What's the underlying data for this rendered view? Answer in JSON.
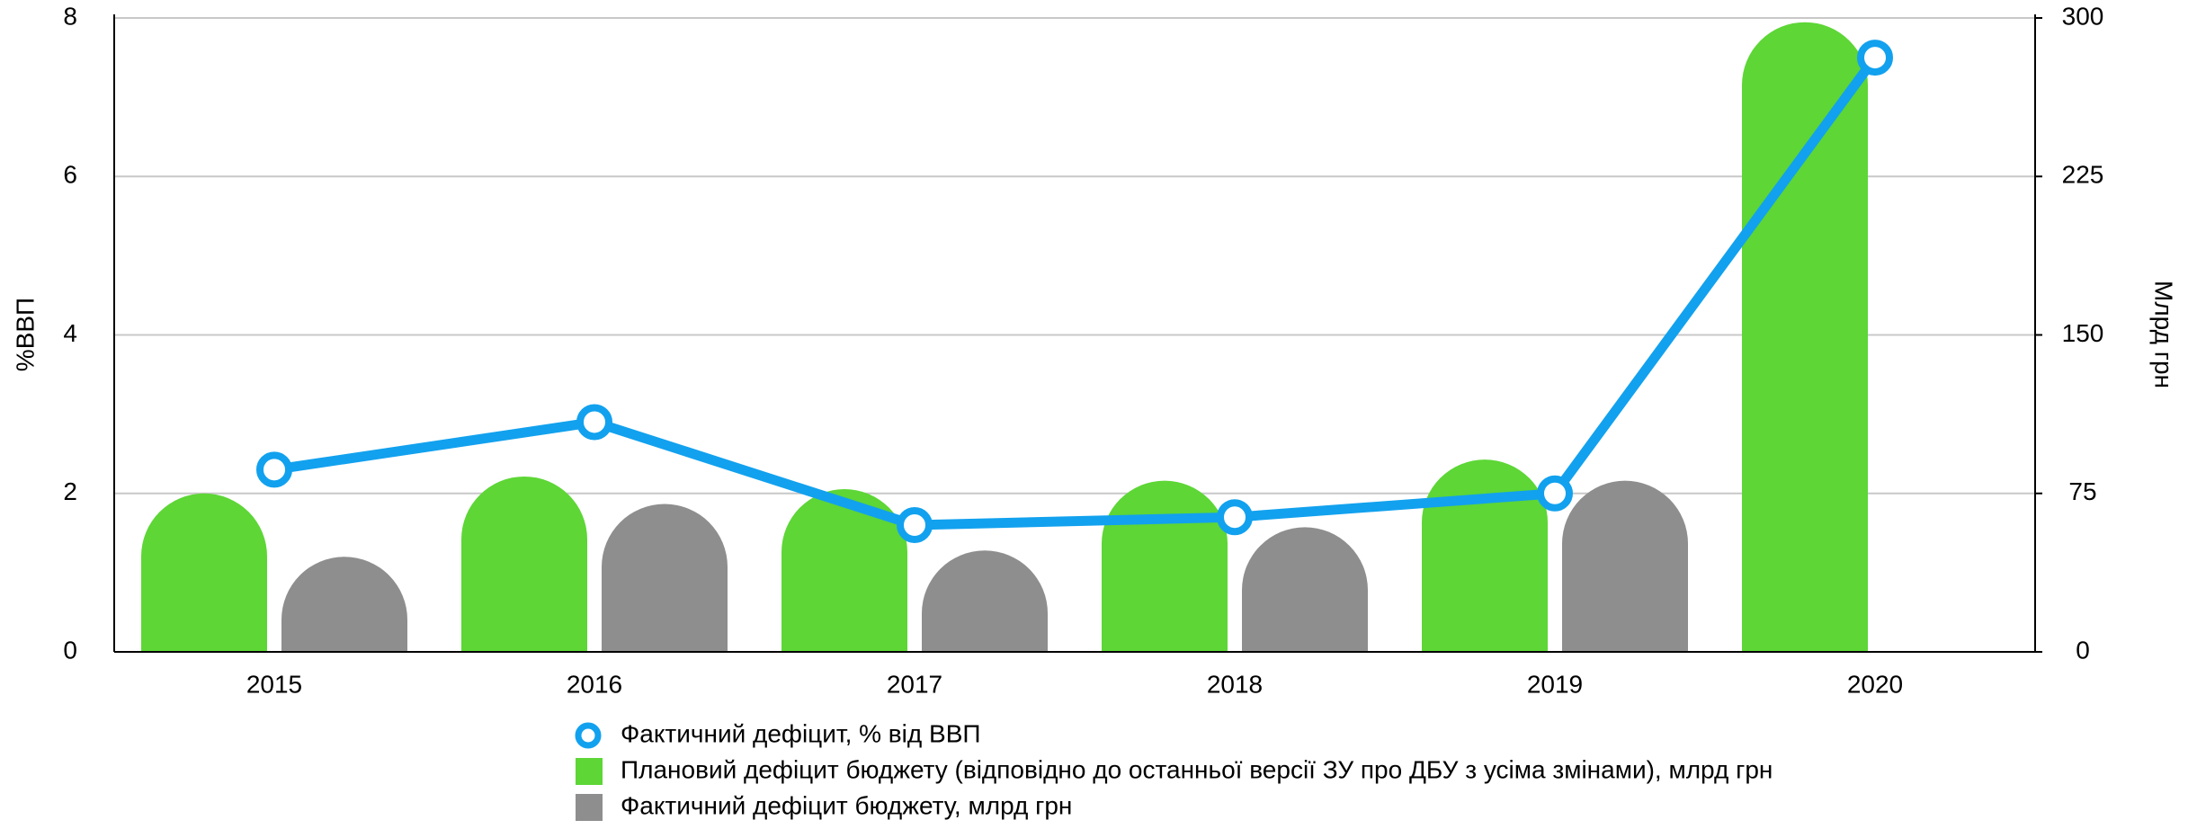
{
  "chart_data": {
    "type": "bar-line",
    "y_label": "%ВВП",
    "y2_label": "Млрд грн",
    "categories": [
      "2015",
      "2016",
      "2017",
      "2018",
      "2019",
      "2020"
    ],
    "series": [
      {
        "name": "Фактичний дефіцит, % від ВВП",
        "type": "line",
        "axis": "y",
        "color": "#12a1ee",
        "values": [
          2.3,
          2.9,
          1.6,
          1.7,
          2.0,
          7.5
        ]
      },
      {
        "name": "Плановий дефіцит бюджету (відповідно до останньої версії ЗУ про ДБУ з усіма змінами), млрд грн",
        "type": "bar",
        "axis": "y2",
        "color": "#5dd636",
        "values": [
          75,
          83,
          77,
          81,
          91,
          298
        ]
      },
      {
        "name": "Фактичний дефіцит бюджету, млрд грн",
        "type": "bar",
        "axis": "y2",
        "color": "#8e8e8e",
        "values": [
          45,
          70,
          48,
          59,
          81,
          null
        ]
      }
    ],
    "ylim": [
      0,
      8
    ],
    "yticks": [
      0,
      2,
      4,
      6,
      8
    ],
    "y2lim": [
      0,
      300
    ],
    "y2ticks": [
      0,
      75,
      150,
      225,
      300
    ],
    "grid": true,
    "legend": "bottom"
  }
}
